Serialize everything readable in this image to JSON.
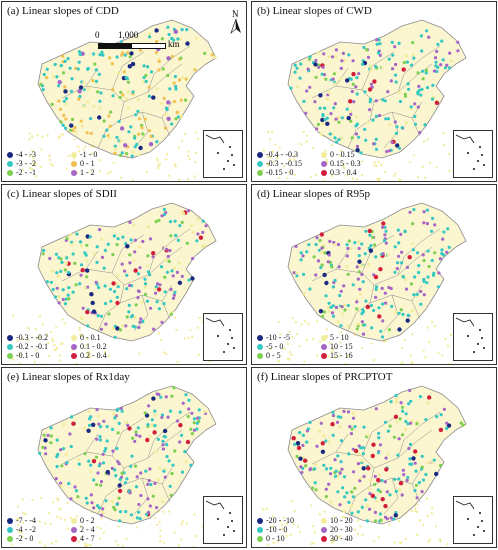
{
  "figure": {
    "panels": [
      {
        "title": "(a) Linear slopes of CDD",
        "legend": [
          {
            "label": "-4 - -3",
            "color": "#1a2a80"
          },
          {
            "label": "-1 - 0",
            "color": "#f3ec9c"
          },
          {
            "label": "-3 - -2",
            "color": "#35c7c2"
          },
          {
            "label": "0 - 1",
            "color": "#f0c050"
          },
          {
            "label": "-2 - -1",
            "color": "#7ccf50"
          },
          {
            "label": "1 - 2",
            "color": "#a566c6"
          }
        ],
        "highlight": "#d21f3c"
      },
      {
        "title": "(b) Linear slopes of CWD",
        "legend": [
          {
            "label": "-0.4 - -0.3",
            "color": "#1a2a80"
          },
          {
            "label": "0 - 0.15",
            "color": "#f3ec9c"
          },
          {
            "label": "-0.3 - -0.15",
            "color": "#35c7c2"
          },
          {
            "label": "0.15 - 0.3",
            "color": "#a566c6"
          },
          {
            "label": "-0.15 - 0",
            "color": "#7ccf50"
          },
          {
            "label": "0.3 - 0.4",
            "color": "#d21f3c"
          }
        ]
      },
      {
        "title": "(c) Linear slopes of SDII",
        "legend": [
          {
            "label": "-0.3 - -0.2",
            "color": "#1a2a80"
          },
          {
            "label": "0 - 0.1",
            "color": "#f3ec9c"
          },
          {
            "label": "-0.2 - -0.1",
            "color": "#35c7c2"
          },
          {
            "label": "0.1 - 0.2",
            "color": "#a566c6"
          },
          {
            "label": "-0.1 - 0",
            "color": "#7ccf50"
          },
          {
            "label": "0.2 - 0.4",
            "color": "#d21f3c"
          }
        ]
      },
      {
        "title": "(d) Linear slopes of R95p",
        "legend": [
          {
            "label": "-10 - -5",
            "color": "#1a2a80"
          },
          {
            "label": "5 - 10",
            "color": "#f3ec9c"
          },
          {
            "label": "-5 - 0",
            "color": "#35c7c2"
          },
          {
            "label": "10 - 15",
            "color": "#a566c6"
          },
          {
            "label": "0 - 5",
            "color": "#7ccf50"
          },
          {
            "label": "15 - 16",
            "color": "#d21f3c"
          }
        ]
      },
      {
        "title": "(e) Linear slopes of Rx1day",
        "legend": [
          {
            "label": "-7 - -4",
            "color": "#1a2a80"
          },
          {
            "label": "0 - 2",
            "color": "#f3ec9c"
          },
          {
            "label": "-4 - -2",
            "color": "#35c7c2"
          },
          {
            "label": "2 - 4",
            "color": "#a566c6"
          },
          {
            "label": "-2 - 0",
            "color": "#7ccf50"
          },
          {
            "label": "4 - 7",
            "color": "#d21f3c"
          }
        ]
      },
      {
        "title": "(f) Linear slopes of PRCPTOT",
        "legend": [
          {
            "label": "-20 - -10",
            "color": "#1a2a80"
          },
          {
            "label": "10 - 20",
            "color": "#f3ec9c"
          },
          {
            "label": "-10 - 0",
            "color": "#35c7c2"
          },
          {
            "label": "20 - 30",
            "color": "#a566c6"
          },
          {
            "label": "0 - 10",
            "color": "#7ccf50"
          },
          {
            "label": "30 - 40",
            "color": "#d21f3c"
          }
        ]
      }
    ],
    "north_label": "N",
    "scale": {
      "zero": "0",
      "value": "1,000",
      "unit": "km"
    },
    "map_fill": "#fbf6d0",
    "outline_color": "#8a8a8a"
  }
}
